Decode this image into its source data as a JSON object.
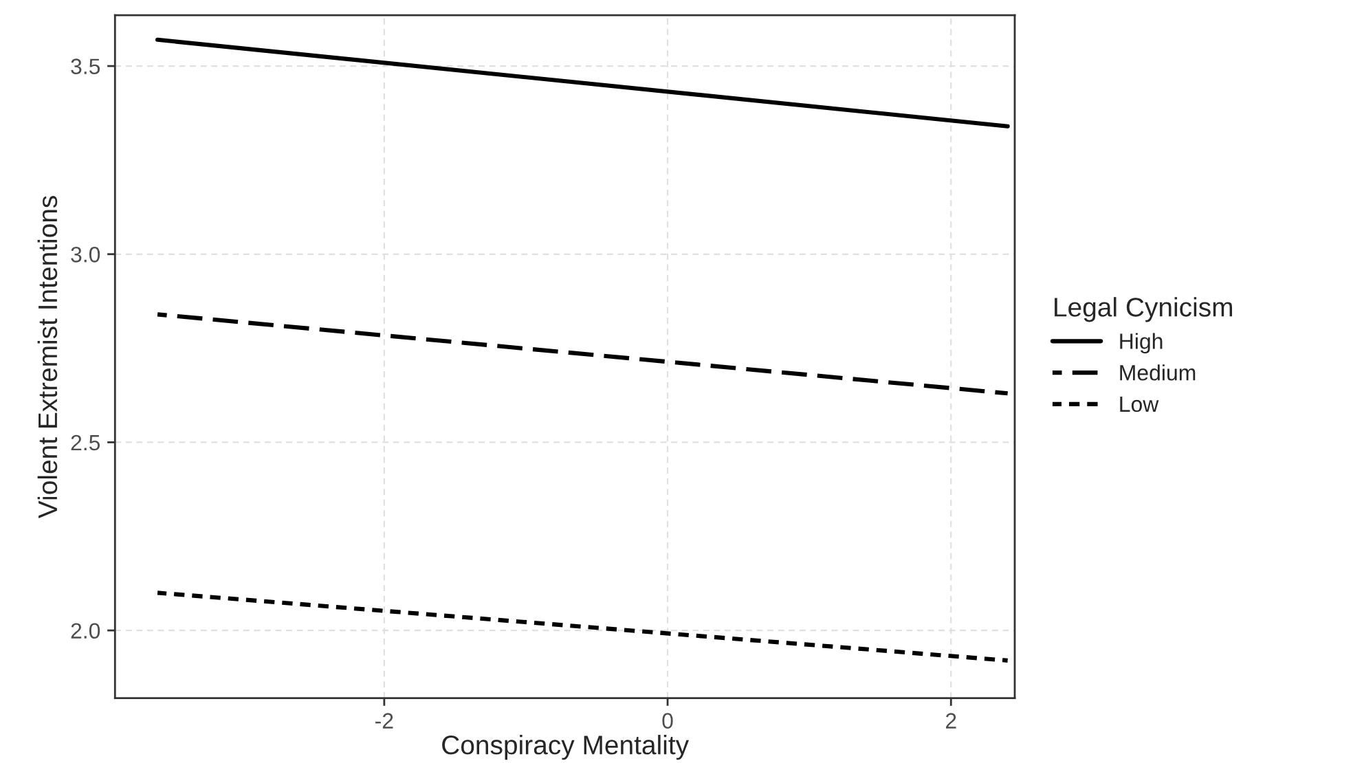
{
  "chart_data": {
    "type": "line",
    "xlabel": "Conspiracy Mentality",
    "ylabel": "Violent Extremist Intentions",
    "legend_title": "Legal Cynicism",
    "legend": "right",
    "x": [
      -3.6,
      2.4
    ],
    "series": [
      {
        "name": "High",
        "color": "#000000",
        "values": [
          3.57,
          3.34
        ],
        "line_style": "solid"
      },
      {
        "name": "Medium",
        "color": "#000000",
        "values": [
          2.84,
          2.63
        ],
        "line_style": "dashed"
      },
      {
        "name": "Low",
        "color": "#000000",
        "values": [
          2.1,
          1.92
        ],
        "line_style": "dotted"
      }
    ],
    "xlim": [
      -3.9,
      2.45
    ],
    "ylim": [
      1.82,
      3.635
    ],
    "xticks": [
      {
        "value": -2,
        "label": "-2"
      },
      0,
      2
    ],
    "yticks": [
      {
        "value": 2.0,
        "label": "2.0"
      },
      2.5,
      {
        "value": 3.0,
        "label": "3.0"
      },
      3.5
    ],
    "grid": true,
    "marker": "none"
  }
}
